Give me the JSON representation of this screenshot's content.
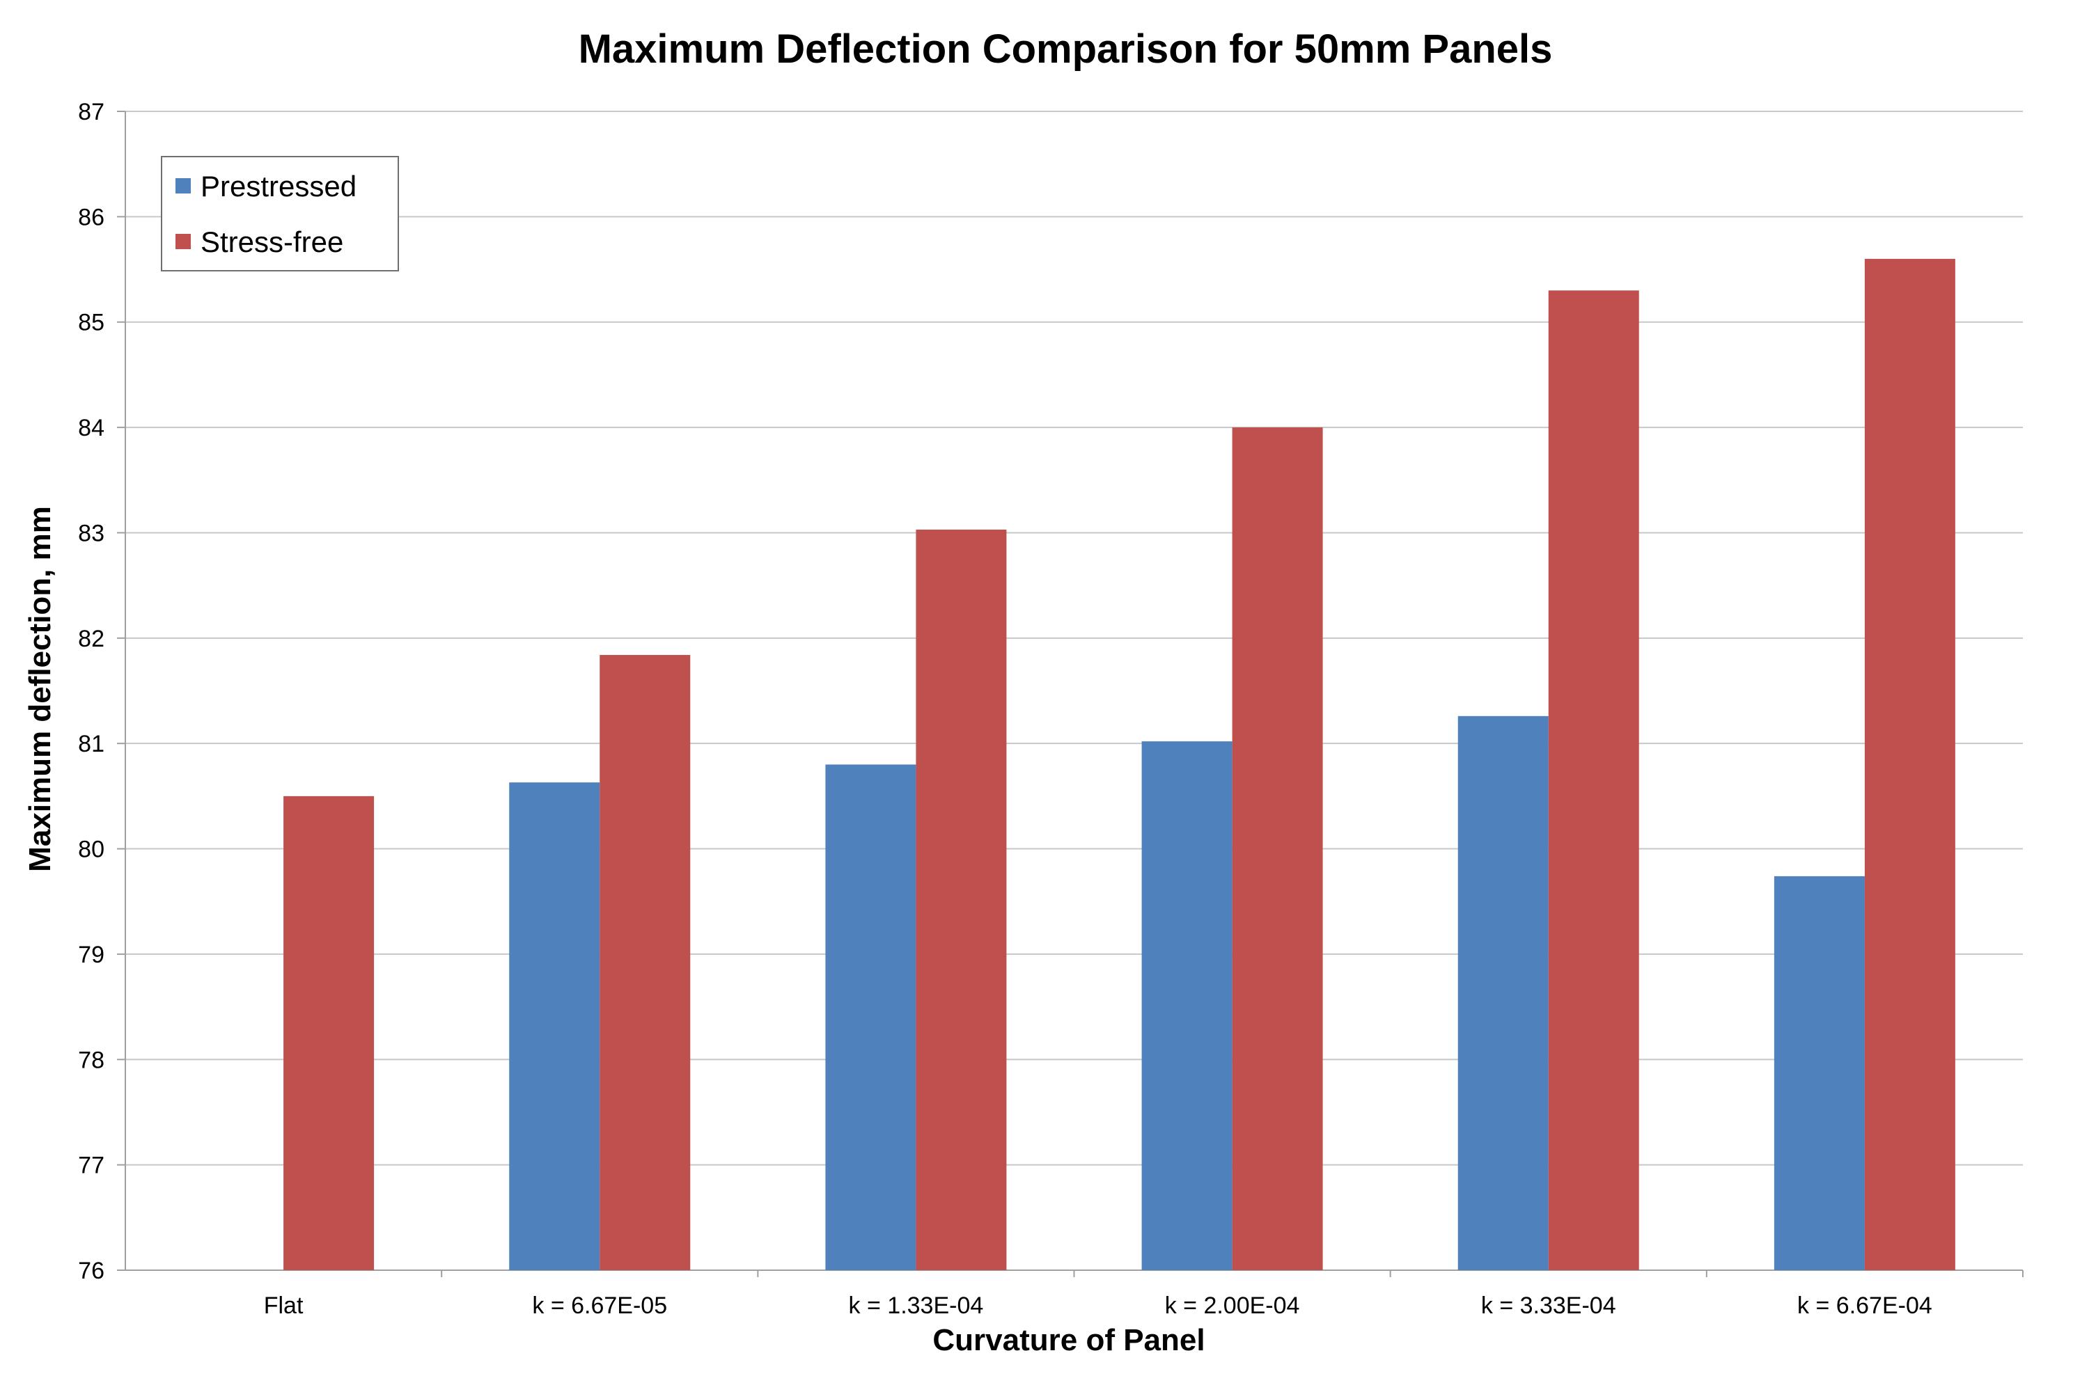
{
  "chart_data": {
    "type": "bar",
    "title": "Maximum Deflection Comparison for 50mm Panels",
    "xlabel": "Curvature of Panel",
    "ylabel": "Maximum deflection, mm",
    "ylim": [
      76,
      87
    ],
    "yticks": [
      76,
      77,
      78,
      79,
      80,
      81,
      82,
      83,
      84,
      85,
      86,
      87
    ],
    "categories": [
      "Flat",
      "k = 6.67E-05",
      "k = 1.33E-04",
      "k = 2.00E-04",
      "k = 3.33E-04",
      "k = 6.67E-04"
    ],
    "series": [
      {
        "name": "Prestressed",
        "color": "#4f81bd",
        "values": [
          null,
          80.63,
          80.8,
          81.02,
          81.26,
          79.74
        ]
      },
      {
        "name": "Stress-free",
        "color": "#c0504d",
        "values": [
          80.5,
          81.84,
          83.03,
          84.0,
          85.3,
          85.6
        ]
      }
    ],
    "grid": true,
    "legend_position": "top-left"
  }
}
